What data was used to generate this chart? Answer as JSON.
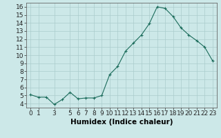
{
  "x": [
    0,
    1,
    2,
    3,
    4,
    5,
    6,
    7,
    8,
    9,
    10,
    11,
    12,
    13,
    14,
    15,
    16,
    17,
    18,
    19,
    20,
    21,
    22,
    23
  ],
  "y": [
    5.1,
    4.8,
    4.8,
    3.9,
    4.5,
    5.4,
    4.6,
    4.7,
    4.7,
    5.0,
    7.6,
    8.6,
    10.5,
    11.5,
    12.5,
    13.9,
    16.0,
    15.8,
    14.8,
    13.4,
    12.5,
    11.8,
    11.0,
    9.3
  ],
  "line_color": "#1a6b5a",
  "marker": "+",
  "marker_size": 3,
  "marker_linewidth": 0.8,
  "line_width": 0.8,
  "bg_color": "#cce8e8",
  "grid_color": "#aacccc",
  "xlabel": "Humidex (Indice chaleur)",
  "xlim": [
    -0.5,
    23.5
  ],
  "ylim": [
    3.5,
    16.5
  ],
  "xticks": [
    0,
    1,
    3,
    5,
    6,
    7,
    8,
    9,
    10,
    11,
    12,
    13,
    14,
    15,
    16,
    17,
    18,
    19,
    20,
    21,
    22,
    23
  ],
  "yticks": [
    4,
    5,
    6,
    7,
    8,
    9,
    10,
    11,
    12,
    13,
    14,
    15,
    16
  ],
  "tick_fontsize": 6.5,
  "label_fontsize": 7.5
}
